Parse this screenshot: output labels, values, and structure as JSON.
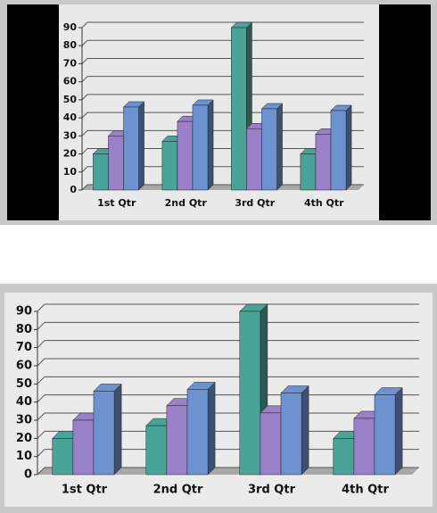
{
  "chart_data": [
    {
      "type": "bar3d",
      "categories": [
        "1st Qtr",
        "2nd Qtr",
        "3rd Qtr",
        "4th Qtr"
      ],
      "series": [
        {
          "color": "#4aa398",
          "values": [
            20,
            27,
            90,
            20
          ]
        },
        {
          "color": "#9a80c8",
          "values": [
            30,
            38,
            34,
            31
          ]
        },
        {
          "color": "#6d92d0",
          "values": [
            46,
            47,
            45,
            44
          ]
        }
      ],
      "ylim": [
        0,
        90
      ],
      "yticks": [
        0,
        10,
        20,
        30,
        40,
        50,
        60,
        70,
        80,
        90
      ],
      "grid": true
    },
    {
      "type": "bar3d",
      "categories": [
        "1st Qtr",
        "2nd Qtr",
        "3rd Qtr",
        "4th Qtr"
      ],
      "series": [
        {
          "color": "#4aa398",
          "values": [
            20,
            27,
            90,
            20
          ]
        },
        {
          "color": "#9a80c8",
          "values": [
            30,
            38,
            34,
            31
          ]
        },
        {
          "color": "#6d92d0",
          "values": [
            46,
            47,
            45,
            44
          ]
        }
      ],
      "ylim": [
        0,
        90
      ],
      "yticks": [
        0,
        10,
        20,
        30,
        40,
        50,
        60,
        70,
        80,
        90
      ],
      "grid": true
    }
  ]
}
